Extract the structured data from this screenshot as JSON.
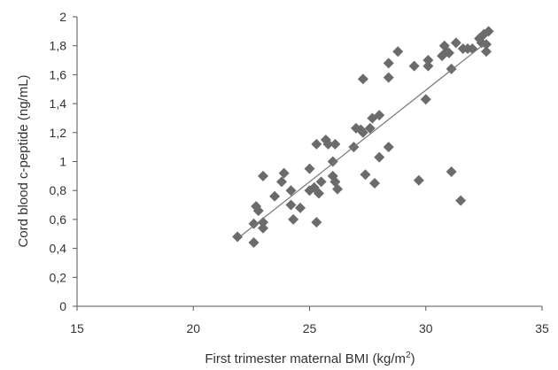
{
  "chart_data": {
    "type": "scatter",
    "title": "",
    "xlabel": "First trimester maternal BMI (kg/m",
    "xlabel_sup": "2",
    "xlabel_tail": ")",
    "ylabel": "Cord blood c-peptide (ng/mL)",
    "xlim": [
      15,
      35
    ],
    "ylim": [
      0,
      2
    ],
    "x_ticks": [
      "15",
      "20",
      "25",
      "30",
      "35"
    ],
    "y_ticks": [
      "0",
      "0,2",
      "0,4",
      "0,6",
      "0,8",
      "1",
      "1,2",
      "1,4",
      "1,6",
      "1,8",
      "2"
    ],
    "grid": false,
    "marker": "diamond",
    "marker_color": "#6b6b6b",
    "trendline": {
      "x": [
        22.0,
        32.5
      ],
      "y": [
        0.48,
        1.81
      ],
      "color": "#777777"
    },
    "points": [
      [
        21.9,
        0.48
      ],
      [
        22.6,
        0.44
      ],
      [
        22.6,
        0.57
      ],
      [
        22.7,
        0.69
      ],
      [
        22.8,
        0.66
      ],
      [
        23.0,
        0.54
      ],
      [
        23.0,
        0.58
      ],
      [
        23.0,
        0.9
      ],
      [
        23.5,
        0.76
      ],
      [
        23.8,
        0.86
      ],
      [
        23.9,
        0.92
      ],
      [
        24.2,
        0.8
      ],
      [
        24.2,
        0.7
      ],
      [
        24.3,
        0.6
      ],
      [
        24.6,
        0.68
      ],
      [
        25.0,
        0.95
      ],
      [
        25.0,
        0.8
      ],
      [
        25.2,
        0.82
      ],
      [
        25.3,
        1.12
      ],
      [
        25.3,
        0.58
      ],
      [
        25.4,
        0.78
      ],
      [
        25.5,
        0.86
      ],
      [
        25.7,
        1.15
      ],
      [
        25.8,
        1.12
      ],
      [
        26.0,
        1.0
      ],
      [
        26.0,
        0.9
      ],
      [
        26.1,
        0.86
      ],
      [
        26.1,
        1.12
      ],
      [
        26.2,
        0.81
      ],
      [
        26.9,
        1.1
      ],
      [
        27.0,
        1.23
      ],
      [
        27.2,
        1.22
      ],
      [
        27.3,
        1.57
      ],
      [
        27.3,
        1.2
      ],
      [
        27.4,
        0.91
      ],
      [
        27.6,
        1.23
      ],
      [
        27.7,
        1.3
      ],
      [
        27.8,
        0.85
      ],
      [
        28.0,
        1.03
      ],
      [
        28.0,
        1.32
      ],
      [
        28.4,
        1.1
      ],
      [
        28.4,
        1.58
      ],
      [
        28.4,
        1.68
      ],
      [
        28.8,
        1.76
      ],
      [
        29.5,
        1.66
      ],
      [
        29.7,
        0.87
      ],
      [
        30.0,
        1.43
      ],
      [
        30.1,
        1.66
      ],
      [
        30.1,
        1.7
      ],
      [
        30.7,
        1.73
      ],
      [
        30.8,
        1.8
      ],
      [
        30.9,
        1.76
      ],
      [
        31.0,
        1.75
      ],
      [
        31.1,
        1.64
      ],
      [
        31.1,
        0.93
      ],
      [
        31.3,
        1.82
      ],
      [
        31.5,
        0.73
      ],
      [
        31.6,
        1.78
      ],
      [
        31.8,
        1.78
      ],
      [
        32.0,
        1.78
      ],
      [
        32.3,
        1.85
      ],
      [
        32.4,
        1.82
      ],
      [
        32.5,
        1.88
      ],
      [
        32.6,
        1.76
      ],
      [
        32.6,
        1.81
      ],
      [
        32.7,
        1.9
      ]
    ]
  }
}
